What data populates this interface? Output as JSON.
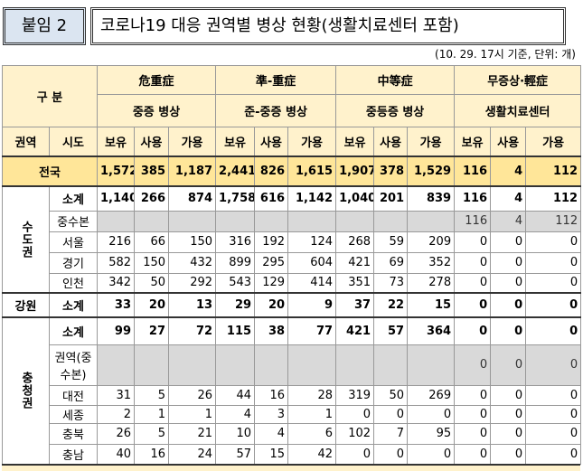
{
  "header": {
    "tag": "붙임 2",
    "title": "코로나19 대응 권역별 병상 현황(생활치료센터 포함)",
    "note": "(10. 29. 17시 기준, 단위: 개)"
  },
  "table": {
    "corner": "구 분",
    "groups": [
      {
        "name": "危重症",
        "sub": "중증 병상"
      },
      {
        "name": "準-重症",
        "sub": "준-중증 병상"
      },
      {
        "name": "中等症",
        "sub": "중등증 병상"
      },
      {
        "name": "무증상·輕症",
        "sub": "생활치료센터"
      }
    ],
    "col_region": "권역",
    "col_sido": "시도",
    "metrics": [
      "보유",
      "사용",
      "가용"
    ],
    "national": {
      "label": "전국",
      "cells": [
        "1,572",
        "385",
        "1,187",
        "2,441",
        "826",
        "1,615",
        "1,907",
        "378",
        "1,529",
        "116",
        "4",
        "112"
      ]
    },
    "regions": [
      {
        "name": "수도권",
        "rows": [
          {
            "sido": "소계",
            "cells": [
              "1,140",
              "266",
              "874",
              "1,758",
              "616",
              "1,142",
              "1,040",
              "201",
              "839",
              "116",
              "4",
              "112"
            ]
          },
          {
            "sido": "중수본",
            "cells": [
              null,
              null,
              null,
              null,
              null,
              null,
              null,
              null,
              null,
              "116",
              "4",
              "112"
            ]
          },
          {
            "sido": "서울",
            "cells": [
              "216",
              "66",
              "150",
              "316",
              "192",
              "124",
              "268",
              "59",
              "209",
              "0",
              "0",
              "0"
            ]
          },
          {
            "sido": "경기",
            "cells": [
              "582",
              "150",
              "432",
              "899",
              "295",
              "604",
              "421",
              "69",
              "352",
              "0",
              "0",
              "0"
            ]
          },
          {
            "sido": "인천",
            "cells": [
              "342",
              "50",
              "292",
              "543",
              "129",
              "414",
              "351",
              "73",
              "278",
              "0",
              "0",
              "0"
            ]
          }
        ]
      },
      {
        "name": "강원",
        "rows": [
          {
            "sido": "소계",
            "cells": [
              "33",
              "20",
              "13",
              "29",
              "20",
              "9",
              "37",
              "22",
              "15",
              "0",
              "0",
              "0"
            ]
          }
        ]
      },
      {
        "name": "충청권",
        "rows": [
          {
            "sido": "소계",
            "cells": [
              "99",
              "27",
              "72",
              "115",
              "38",
              "77",
              "421",
              "57",
              "364",
              "0",
              "0",
              "0"
            ]
          },
          {
            "sido": "권역(중수본)",
            "cells": [
              null,
              null,
              null,
              null,
              null,
              null,
              null,
              null,
              null,
              "0",
              "0",
              "0"
            ]
          },
          {
            "sido": "대전",
            "cells": [
              "31",
              "5",
              "26",
              "44",
              "16",
              "28",
              "319",
              "50",
              "269",
              "0",
              "0",
              "0"
            ]
          },
          {
            "sido": "세종",
            "cells": [
              "2",
              "1",
              "1",
              "4",
              "3",
              "1",
              "0",
              "0",
              "0",
              "0",
              "0",
              "0"
            ]
          },
          {
            "sido": "충북",
            "cells": [
              "26",
              "5",
              "21",
              "10",
              "4",
              "6",
              "102",
              "7",
              "95",
              "0",
              "0",
              "0"
            ]
          },
          {
            "sido": "충남",
            "cells": [
              "40",
              "16",
              "24",
              "57",
              "15",
              "42",
              "0",
              "0",
              "0",
              "0",
              "0",
              "0"
            ]
          }
        ]
      }
    ]
  }
}
